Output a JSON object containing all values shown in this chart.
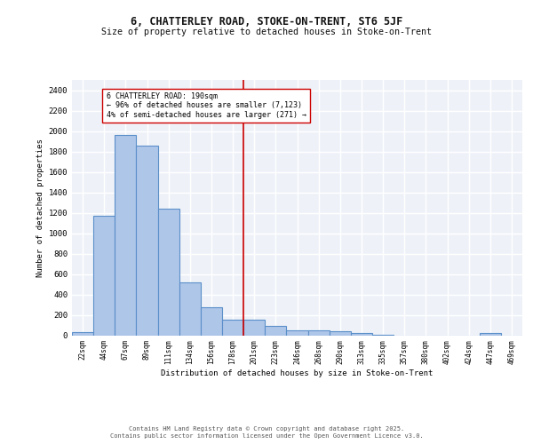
{
  "title1": "6, CHATTERLEY ROAD, STOKE-ON-TRENT, ST6 5JF",
  "title2": "Size of property relative to detached houses in Stoke-on-Trent",
  "xlabel": "Distribution of detached houses by size in Stoke-on-Trent",
  "ylabel": "Number of detached properties",
  "categories": [
    "22sqm",
    "44sqm",
    "67sqm",
    "89sqm",
    "111sqm",
    "134sqm",
    "156sqm",
    "178sqm",
    "201sqm",
    "223sqm",
    "246sqm",
    "268sqm",
    "290sqm",
    "313sqm",
    "335sqm",
    "357sqm",
    "380sqm",
    "402sqm",
    "424sqm",
    "447sqm",
    "469sqm"
  ],
  "values": [
    30,
    1170,
    1960,
    1855,
    1240,
    515,
    275,
    155,
    155,
    95,
    50,
    45,
    35,
    22,
    8,
    0,
    0,
    0,
    0,
    20,
    0
  ],
  "bar_color": "#aec6e8",
  "bar_edge_color": "#5b8fc9",
  "vline_color": "#cc0000",
  "vline_pos": 7.5,
  "annotation_text": "6 CHATTERLEY ROAD: 190sqm\n← 96% of detached houses are smaller (7,123)\n4% of semi-detached houses are larger (271) →",
  "ylim": [
    0,
    2500
  ],
  "yticks": [
    0,
    200,
    400,
    600,
    800,
    1000,
    1200,
    1400,
    1600,
    1800,
    2000,
    2200,
    2400
  ],
  "bg_color": "#eef2f8",
  "grid_color": "#ffffff",
  "footer1": "Contains HM Land Registry data © Crown copyright and database right 2025.",
  "footer2": "Contains public sector information licensed under the Open Government Licence v3.0."
}
